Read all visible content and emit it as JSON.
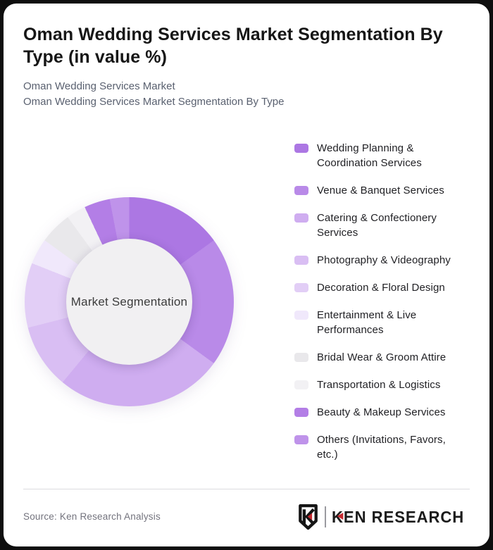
{
  "page": {
    "background_color": "#0e0e0e",
    "card_color": "#ffffff",
    "title": "Oman Wedding Services Market Segmentation By Type (in value %)",
    "subtitle_lines": [
      "Oman Wedding Services Market",
      "Oman Wedding Services Market Segmentation By Type"
    ]
  },
  "chart_data": {
    "type": "pie",
    "subtype": "donut",
    "title": "Oman Wedding Services Market Segmentation By Type (in value %)",
    "center_label": "Market Segmentation",
    "legend_position": "right",
    "start_angle_deg": 0,
    "inner_radius_ratio": 0.6,
    "value_labels_shown": false,
    "values_note": "percent of value, estimated from arc angles (no numeric labels shown)",
    "categories": [
      "Wedding Planning & Coordination Services",
      "Venue & Banquet Services",
      "Catering & Confectionery Services",
      "Photography & Videography",
      "Decoration & Floral Design",
      "Entertainment & Live Performances",
      "Bridal Wear & Groom Attire",
      "Transportation & Logistics",
      "Beauty & Makeup Services",
      "Others (Invitations, Favors, etc.)"
    ],
    "values": [
      15,
      20,
      26,
      10,
      10,
      4,
      5,
      3,
      4,
      3
    ],
    "colors": [
      "#ac77e3",
      "#b98ae8",
      "#cfadf0",
      "#d9bef3",
      "#e2cef6",
      "#f0e8fb",
      "#e9e8eb",
      "#f2f1f4",
      "#b37ee6",
      "#bf93ea"
    ],
    "center_fill": "#f1f0f2"
  },
  "footer": {
    "source": "Source: Ken Research Analysis",
    "logo": {
      "shield_letter": "K",
      "brand_k": "K",
      "brand_rest": "EN RESEARCH",
      "accent_color": "#c5282f",
      "ink_color": "#1b1b1b"
    }
  }
}
